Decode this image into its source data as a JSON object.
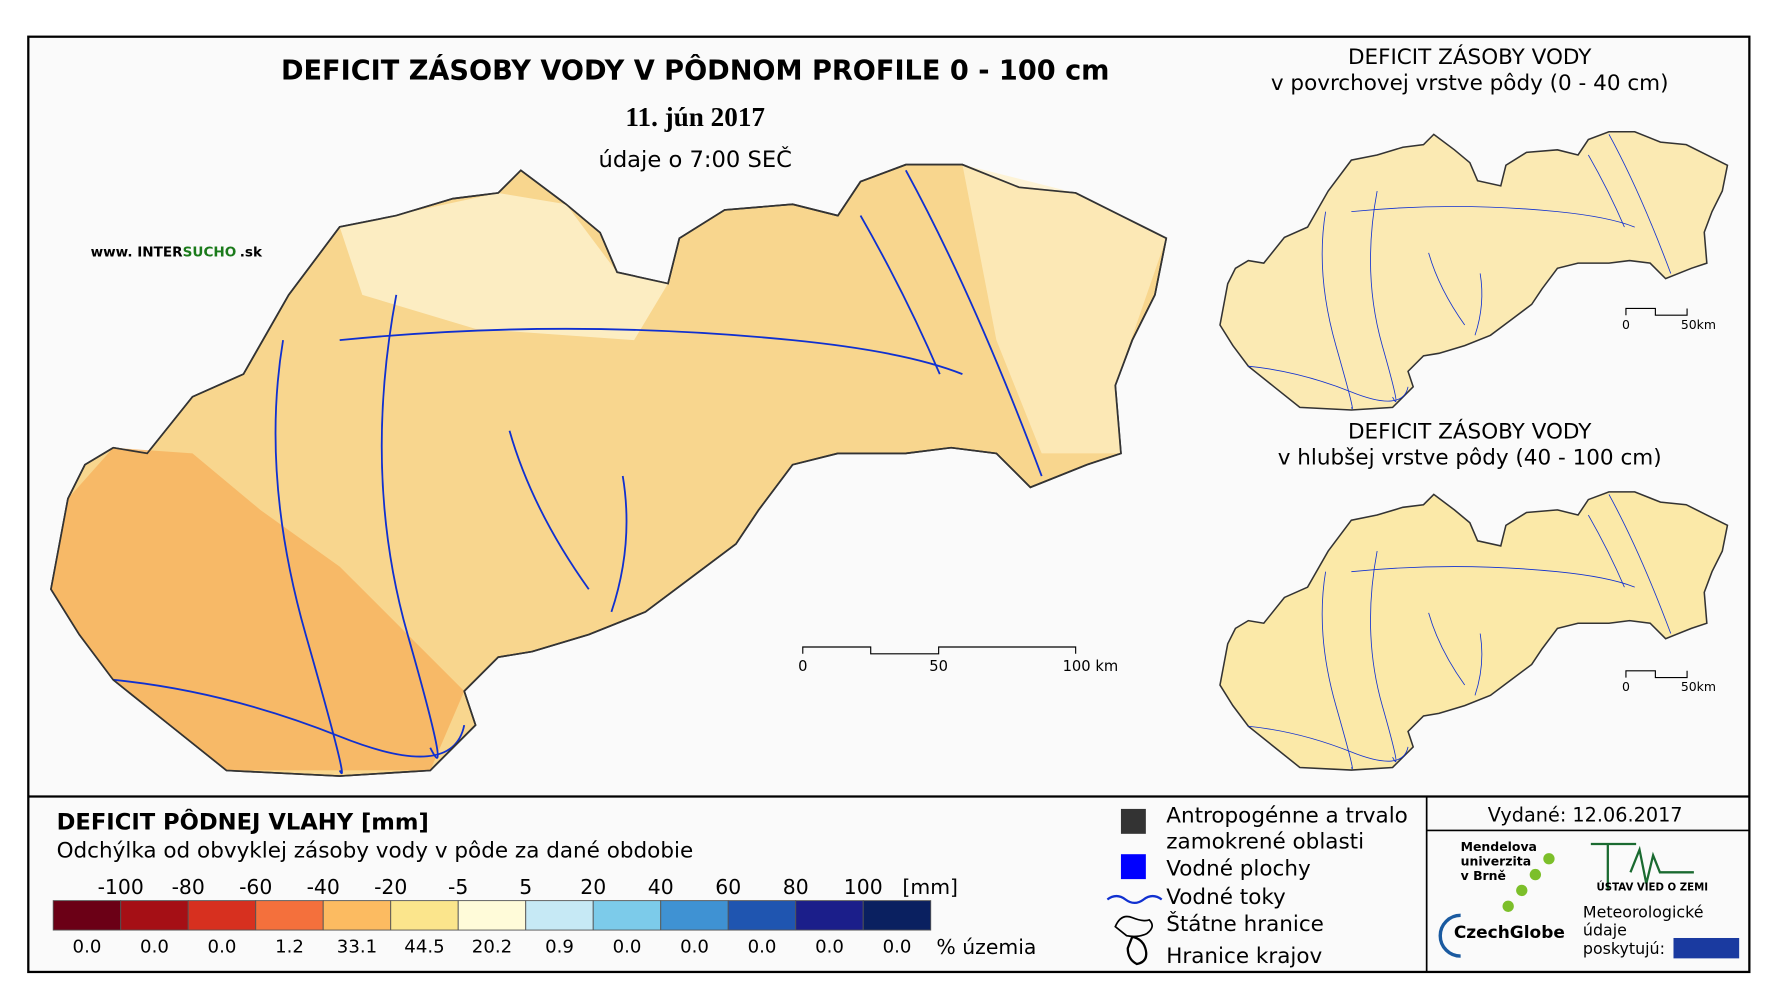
{
  "header": {
    "title": "DEFICIT ZÁSOBY VODY V PÔDNOM PROFILE 0 - 100 cm",
    "date": "11. jún 2017",
    "time": "údaje o 7:00 SEČ"
  },
  "website": {
    "prefix": "www. INTER",
    "highlight": "SUCHO",
    "suffix": ".sk"
  },
  "main_scale": [
    "0",
    "50",
    "100 km"
  ],
  "insets": [
    {
      "title": "DEFICIT ZÁSOBY VODY",
      "subtitle": "v povrchovej vrstve pôdy (0 - 40 cm)",
      "scale": [
        "0",
        "50km"
      ]
    },
    {
      "title": "DEFICIT ZÁSOBY VODY",
      "subtitle": "v hlubšej vrstve pôdy (40 - 100 cm)",
      "scale": [
        "0",
        "50km"
      ]
    }
  ],
  "legend": {
    "title": "DEFICIT PÔDNEJ VLAHY [mm]",
    "subtitle": "Odchýlka od obvyklej zásoby vody v pôde za dané obdobie",
    "breaks": [
      "-100",
      "-80",
      "-60",
      "-40",
      "-20",
      "-5",
      "5",
      "20",
      "40",
      "60",
      "80",
      "100"
    ],
    "unit": "[mm]",
    "colors": [
      "#6b0016",
      "#a50f15",
      "#d7301f",
      "#f4703c",
      "#fcbb61",
      "#fbe58c",
      "#fffbd9",
      "#c6e9f5",
      "#7ccbea",
      "#3f92d3",
      "#1f55b0",
      "#1b1e8a",
      "#0a2060"
    ],
    "percentages": [
      "0.0",
      "0.0",
      "0.0",
      "1.2",
      "33.1",
      "44.5",
      "20.2",
      "0.9",
      "0.0",
      "0.0",
      "0.0",
      "0.0",
      "0.0"
    ],
    "percent_label": "% územia"
  },
  "symbols": [
    "Antropogénne a trvalo",
    "zamokrené oblasti",
    "Vodné plochy",
    "Vodné toky",
    "Štátne hranice",
    "Hranice krajov"
  ],
  "issued": "Vydané: 12.06.2017",
  "logos": {
    "mendel": [
      "Mendelova",
      "univerzita",
      "v Brně"
    ],
    "czechglobe": "CzechGlobe",
    "uvz": "ÚSTAV VIED O ZEMI",
    "meteo": [
      "Meteorologické",
      "údaje",
      "poskytujú:"
    ]
  }
}
